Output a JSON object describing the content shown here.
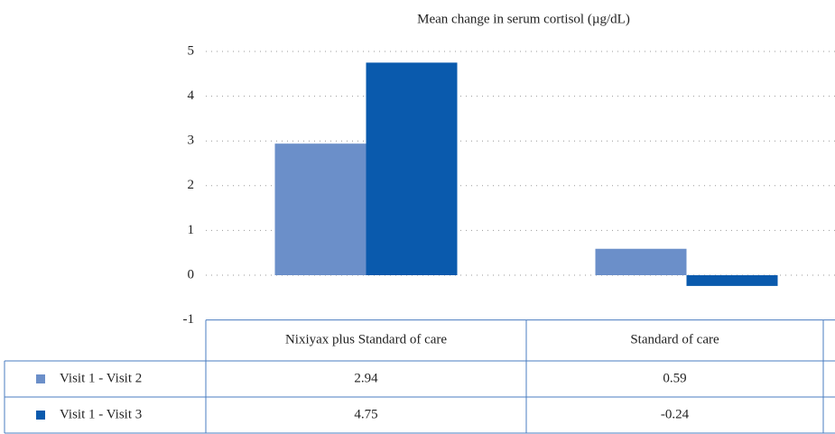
{
  "chart_data": {
    "type": "bar",
    "title": "Mean change in serum cortisol (µg/dL)",
    "categories": [
      "Nixiyax plus Standard of care",
      "Standard of care"
    ],
    "series": [
      {
        "name": "Visit 1 - Visit 2",
        "color": "#6b8fc9",
        "values": [
          2.94,
          0.59
        ]
      },
      {
        "name": "Visit 1 - Visit 3",
        "color": "#0a5aad",
        "values": [
          4.75,
          -0.24
        ]
      }
    ],
    "ylim": [
      -1,
      5
    ],
    "yticks": [
      -1,
      0,
      1,
      2,
      3,
      4,
      5
    ],
    "grid": true
  }
}
